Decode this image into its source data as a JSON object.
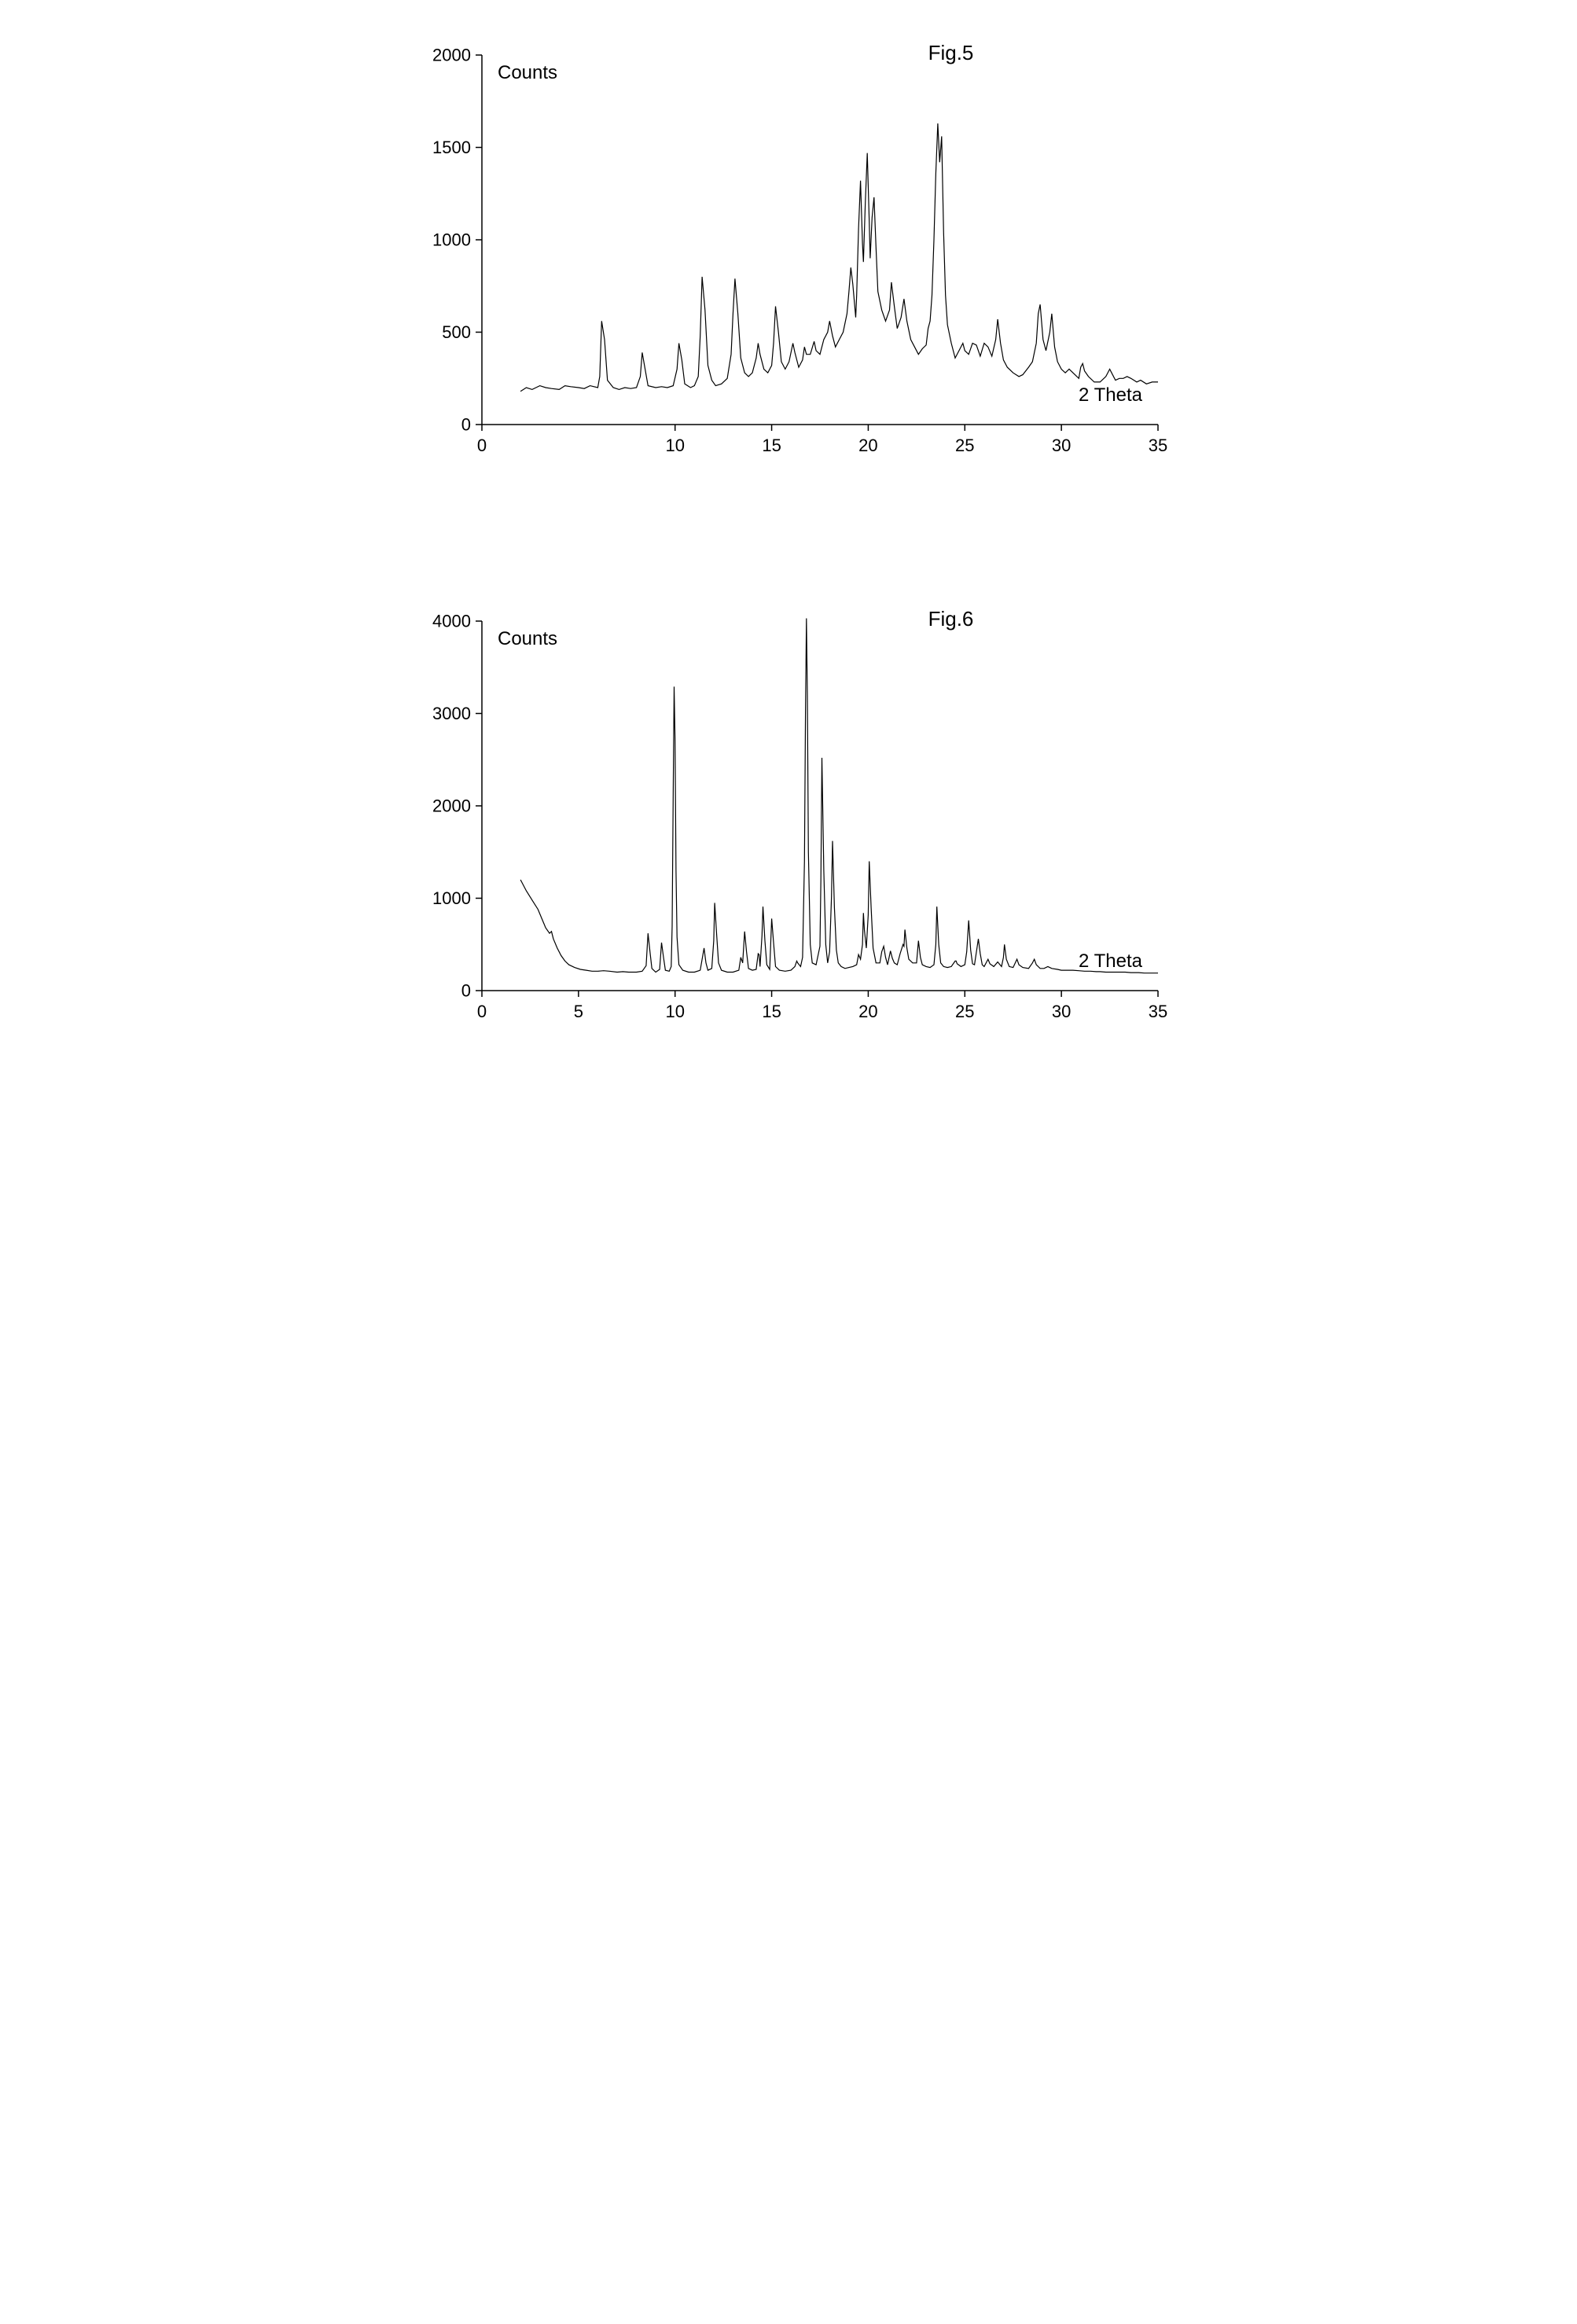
{
  "page": {
    "background_color": "#ffffff"
  },
  "fig5": {
    "type": "line",
    "title": "Fig.5",
    "ylabel": "Counts",
    "xlabel_right": "2 Theta",
    "xlim": [
      0,
      35
    ],
    "ylim": [
      0,
      2000
    ],
    "x_ticks": [
      0,
      10,
      15,
      20,
      25,
      30,
      35
    ],
    "y_ticks": [
      0,
      500,
      1000,
      1500,
      2000
    ],
    "title_fontsize": 26,
    "label_fontsize": 24,
    "tick_fontsize": 22,
    "line_color": "#000000",
    "line_width": 1.2,
    "axis_color": "#000000",
    "background_color": "#ffffff",
    "data": [
      [
        2.0,
        180
      ],
      [
        2.3,
        200
      ],
      [
        2.6,
        190
      ],
      [
        3.0,
        210
      ],
      [
        3.3,
        200
      ],
      [
        3.6,
        195
      ],
      [
        4.0,
        190
      ],
      [
        4.3,
        210
      ],
      [
        4.6,
        205
      ],
      [
        5.0,
        200
      ],
      [
        5.3,
        195
      ],
      [
        5.6,
        210
      ],
      [
        6.0,
        200
      ],
      [
        6.1,
        260
      ],
      [
        6.2,
        560
      ],
      [
        6.35,
        460
      ],
      [
        6.5,
        240
      ],
      [
        6.8,
        200
      ],
      [
        7.1,
        190
      ],
      [
        7.4,
        200
      ],
      [
        7.7,
        195
      ],
      [
        8.0,
        200
      ],
      [
        8.2,
        260
      ],
      [
        8.3,
        390
      ],
      [
        8.45,
        300
      ],
      [
        8.6,
        210
      ],
      [
        9.0,
        200
      ],
      [
        9.3,
        205
      ],
      [
        9.6,
        200
      ],
      [
        9.9,
        210
      ],
      [
        10.1,
        300
      ],
      [
        10.2,
        440
      ],
      [
        10.35,
        350
      ],
      [
        10.5,
        220
      ],
      [
        10.8,
        200
      ],
      [
        11.0,
        210
      ],
      [
        11.2,
        260
      ],
      [
        11.3,
        480
      ],
      [
        11.4,
        800
      ],
      [
        11.55,
        620
      ],
      [
        11.7,
        320
      ],
      [
        11.9,
        240
      ],
      [
        12.1,
        210
      ],
      [
        12.4,
        220
      ],
      [
        12.7,
        250
      ],
      [
        12.9,
        380
      ],
      [
        13.0,
        600
      ],
      [
        13.1,
        790
      ],
      [
        13.25,
        600
      ],
      [
        13.4,
        360
      ],
      [
        13.6,
        280
      ],
      [
        13.8,
        260
      ],
      [
        14.0,
        280
      ],
      [
        14.2,
        360
      ],
      [
        14.3,
        440
      ],
      [
        14.4,
        380
      ],
      [
        14.6,
        300
      ],
      [
        14.8,
        280
      ],
      [
        15.0,
        320
      ],
      [
        15.1,
        440
      ],
      [
        15.2,
        640
      ],
      [
        15.35,
        500
      ],
      [
        15.5,
        340
      ],
      [
        15.7,
        300
      ],
      [
        15.9,
        340
      ],
      [
        16.1,
        440
      ],
      [
        16.2,
        390
      ],
      [
        16.4,
        310
      ],
      [
        16.6,
        350
      ],
      [
        16.7,
        420
      ],
      [
        16.8,
        380
      ],
      [
        17.0,
        380
      ],
      [
        17.2,
        450
      ],
      [
        17.3,
        400
      ],
      [
        17.5,
        380
      ],
      [
        17.7,
        460
      ],
      [
        17.9,
        500
      ],
      [
        18.0,
        560
      ],
      [
        18.15,
        480
      ],
      [
        18.3,
        420
      ],
      [
        18.5,
        460
      ],
      [
        18.7,
        500
      ],
      [
        18.9,
        600
      ],
      [
        19.0,
        720
      ],
      [
        19.1,
        850
      ],
      [
        19.2,
        760
      ],
      [
        19.35,
        580
      ],
      [
        19.4,
        700
      ],
      [
        19.5,
        1060
      ],
      [
        19.6,
        1320
      ],
      [
        19.7,
        980
      ],
      [
        19.75,
        880
      ],
      [
        19.85,
        1200
      ],
      [
        19.95,
        1470
      ],
      [
        20.05,
        1100
      ],
      [
        20.1,
        900
      ],
      [
        20.2,
        1120
      ],
      [
        20.3,
        1230
      ],
      [
        20.4,
        960
      ],
      [
        20.5,
        720
      ],
      [
        20.7,
        620
      ],
      [
        20.9,
        560
      ],
      [
        21.1,
        620
      ],
      [
        21.2,
        770
      ],
      [
        21.35,
        640
      ],
      [
        21.5,
        520
      ],
      [
        21.7,
        580
      ],
      [
        21.85,
        680
      ],
      [
        22.0,
        560
      ],
      [
        22.2,
        460
      ],
      [
        22.4,
        420
      ],
      [
        22.6,
        380
      ],
      [
        22.8,
        410
      ],
      [
        23.0,
        430
      ],
      [
        23.1,
        520
      ],
      [
        23.2,
        560
      ],
      [
        23.3,
        700
      ],
      [
        23.4,
        1000
      ],
      [
        23.5,
        1360
      ],
      [
        23.6,
        1630
      ],
      [
        23.7,
        1420
      ],
      [
        23.8,
        1560
      ],
      [
        23.9,
        1040
      ],
      [
        24.0,
        700
      ],
      [
        24.1,
        540
      ],
      [
        24.3,
        440
      ],
      [
        24.5,
        360
      ],
      [
        24.7,
        400
      ],
      [
        24.9,
        440
      ],
      [
        25.0,
        400
      ],
      [
        25.2,
        380
      ],
      [
        25.4,
        440
      ],
      [
        25.6,
        430
      ],
      [
        25.8,
        370
      ],
      [
        26.0,
        440
      ],
      [
        26.2,
        420
      ],
      [
        26.4,
        370
      ],
      [
        26.6,
        460
      ],
      [
        26.7,
        570
      ],
      [
        26.85,
        440
      ],
      [
        27.0,
        350
      ],
      [
        27.2,
        310
      ],
      [
        27.5,
        280
      ],
      [
        27.8,
        260
      ],
      [
        28.0,
        270
      ],
      [
        28.3,
        310
      ],
      [
        28.5,
        340
      ],
      [
        28.7,
        440
      ],
      [
        28.8,
        600
      ],
      [
        28.9,
        650
      ],
      [
        29.05,
        460
      ],
      [
        29.2,
        400
      ],
      [
        29.4,
        500
      ],
      [
        29.5,
        600
      ],
      [
        29.65,
        420
      ],
      [
        29.8,
        340
      ],
      [
        30.0,
        300
      ],
      [
        30.2,
        280
      ],
      [
        30.4,
        300
      ],
      [
        30.6,
        280
      ],
      [
        30.9,
        250
      ],
      [
        31.0,
        310
      ],
      [
        31.1,
        330
      ],
      [
        31.2,
        290
      ],
      [
        31.4,
        260
      ],
      [
        31.7,
        230
      ],
      [
        32.0,
        230
      ],
      [
        32.3,
        260
      ],
      [
        32.5,
        300
      ],
      [
        32.6,
        280
      ],
      [
        32.8,
        240
      ],
      [
        33.0,
        250
      ],
      [
        33.2,
        250
      ],
      [
        33.4,
        260
      ],
      [
        33.6,
        250
      ],
      [
        33.9,
        230
      ],
      [
        34.1,
        240
      ],
      [
        34.4,
        220
      ],
      [
        34.7,
        230
      ],
      [
        35.0,
        230
      ]
    ]
  },
  "fig6": {
    "type": "line",
    "title": "Fig.6",
    "ylabel": "Counts",
    "xlabel_right": "2 Theta",
    "xlim": [
      0,
      35
    ],
    "ylim": [
      0,
      4000
    ],
    "x_ticks": [
      0,
      5,
      10,
      15,
      20,
      25,
      30,
      35
    ],
    "y_ticks": [
      0,
      1000,
      2000,
      3000,
      4000
    ],
    "title_fontsize": 26,
    "label_fontsize": 24,
    "tick_fontsize": 22,
    "line_color": "#000000",
    "line_width": 1.2,
    "axis_color": "#000000",
    "background_color": "#ffffff",
    "data": [
      [
        2.0,
        1200
      ],
      [
        2.3,
        1080
      ],
      [
        2.6,
        980
      ],
      [
        2.9,
        880
      ],
      [
        3.1,
        780
      ],
      [
        3.3,
        680
      ],
      [
        3.5,
        620
      ],
      [
        3.6,
        640
      ],
      [
        3.7,
        560
      ],
      [
        3.9,
        460
      ],
      [
        4.1,
        380
      ],
      [
        4.3,
        320
      ],
      [
        4.5,
        280
      ],
      [
        4.8,
        250
      ],
      [
        5.1,
        230
      ],
      [
        5.4,
        220
      ],
      [
        5.7,
        210
      ],
      [
        6.0,
        210
      ],
      [
        6.3,
        215
      ],
      [
        6.6,
        210
      ],
      [
        7.0,
        200
      ],
      [
        7.3,
        205
      ],
      [
        7.6,
        200
      ],
      [
        8.0,
        200
      ],
      [
        8.3,
        210
      ],
      [
        8.5,
        270
      ],
      [
        8.6,
        620
      ],
      [
        8.7,
        420
      ],
      [
        8.8,
        240
      ],
      [
        9.0,
        200
      ],
      [
        9.2,
        230
      ],
      [
        9.3,
        520
      ],
      [
        9.4,
        360
      ],
      [
        9.5,
        220
      ],
      [
        9.7,
        210
      ],
      [
        9.8,
        260
      ],
      [
        9.85,
        700
      ],
      [
        9.9,
        2100
      ],
      [
        9.95,
        3290
      ],
      [
        10.0,
        2700
      ],
      [
        10.05,
        1300
      ],
      [
        10.1,
        580
      ],
      [
        10.2,
        280
      ],
      [
        10.4,
        220
      ],
      [
        10.7,
        200
      ],
      [
        11.0,
        200
      ],
      [
        11.3,
        220
      ],
      [
        11.5,
        460
      ],
      [
        11.6,
        300
      ],
      [
        11.7,
        220
      ],
      [
        11.9,
        240
      ],
      [
        12.0,
        540
      ],
      [
        12.05,
        950
      ],
      [
        12.15,
        620
      ],
      [
        12.25,
        300
      ],
      [
        12.4,
        220
      ],
      [
        12.7,
        200
      ],
      [
        13.0,
        200
      ],
      [
        13.3,
        220
      ],
      [
        13.4,
        360
      ],
      [
        13.5,
        300
      ],
      [
        13.6,
        640
      ],
      [
        13.7,
        420
      ],
      [
        13.8,
        240
      ],
      [
        14.0,
        220
      ],
      [
        14.2,
        230
      ],
      [
        14.3,
        400
      ],
      [
        14.35,
        390
      ],
      [
        14.4,
        260
      ],
      [
        14.5,
        600
      ],
      [
        14.55,
        910
      ],
      [
        14.65,
        540
      ],
      [
        14.75,
        280
      ],
      [
        14.9,
        230
      ],
      [
        15.0,
        780
      ],
      [
        15.1,
        520
      ],
      [
        15.2,
        260
      ],
      [
        15.4,
        220
      ],
      [
        15.7,
        210
      ],
      [
        16.0,
        220
      ],
      [
        16.2,
        260
      ],
      [
        16.3,
        320
      ],
      [
        16.35,
        300
      ],
      [
        16.5,
        260
      ],
      [
        16.6,
        360
      ],
      [
        16.7,
        1400
      ],
      [
        16.75,
        3000
      ],
      [
        16.8,
        4030
      ],
      [
        16.85,
        3200
      ],
      [
        16.9,
        1500
      ],
      [
        17.0,
        500
      ],
      [
        17.1,
        300
      ],
      [
        17.3,
        280
      ],
      [
        17.5,
        480
      ],
      [
        17.55,
        1200
      ],
      [
        17.6,
        2520
      ],
      [
        17.7,
        1300
      ],
      [
        17.8,
        500
      ],
      [
        17.9,
        300
      ],
      [
        18.0,
        420
      ],
      [
        18.1,
        1020
      ],
      [
        18.15,
        1620
      ],
      [
        18.25,
        900
      ],
      [
        18.35,
        440
      ],
      [
        18.45,
        300
      ],
      [
        18.6,
        260
      ],
      [
        18.8,
        240
      ],
      [
        19.0,
        250
      ],
      [
        19.2,
        260
      ],
      [
        19.4,
        280
      ],
      [
        19.5,
        390
      ],
      [
        19.6,
        340
      ],
      [
        19.7,
        500
      ],
      [
        19.75,
        840
      ],
      [
        19.8,
        660
      ],
      [
        19.9,
        460
      ],
      [
        20.0,
        820
      ],
      [
        20.05,
        1400
      ],
      [
        20.15,
        900
      ],
      [
        20.25,
        460
      ],
      [
        20.4,
        300
      ],
      [
        20.6,
        300
      ],
      [
        20.7,
        420
      ],
      [
        20.8,
        480
      ],
      [
        20.9,
        360
      ],
      [
        21.0,
        280
      ],
      [
        21.15,
        430
      ],
      [
        21.25,
        350
      ],
      [
        21.35,
        300
      ],
      [
        21.5,
        280
      ],
      [
        21.65,
        400
      ],
      [
        21.8,
        500
      ],
      [
        21.85,
        480
      ],
      [
        21.9,
        660
      ],
      [
        22.0,
        460
      ],
      [
        22.1,
        340
      ],
      [
        22.3,
        300
      ],
      [
        22.5,
        300
      ],
      [
        22.6,
        540
      ],
      [
        22.7,
        360
      ],
      [
        22.8,
        280
      ],
      [
        23.0,
        260
      ],
      [
        23.2,
        250
      ],
      [
        23.4,
        280
      ],
      [
        23.5,
        500
      ],
      [
        23.55,
        910
      ],
      [
        23.65,
        500
      ],
      [
        23.75,
        300
      ],
      [
        23.9,
        260
      ],
      [
        24.1,
        250
      ],
      [
        24.3,
        260
      ],
      [
        24.5,
        320
      ],
      [
        24.55,
        320
      ],
      [
        24.6,
        290
      ],
      [
        24.8,
        260
      ],
      [
        25.0,
        280
      ],
      [
        25.1,
        420
      ],
      [
        25.2,
        760
      ],
      [
        25.3,
        440
      ],
      [
        25.4,
        290
      ],
      [
        25.5,
        280
      ],
      [
        25.7,
        560
      ],
      [
        25.8,
        400
      ],
      [
        25.9,
        280
      ],
      [
        26.0,
        260
      ],
      [
        26.2,
        340
      ],
      [
        26.3,
        290
      ],
      [
        26.5,
        260
      ],
      [
        26.7,
        310
      ],
      [
        26.9,
        260
      ],
      [
        27.0,
        360
      ],
      [
        27.05,
        500
      ],
      [
        27.15,
        340
      ],
      [
        27.3,
        260
      ],
      [
        27.5,
        250
      ],
      [
        27.7,
        340
      ],
      [
        27.8,
        280
      ],
      [
        28.0,
        250
      ],
      [
        28.3,
        240
      ],
      [
        28.5,
        300
      ],
      [
        28.6,
        340
      ],
      [
        28.7,
        280
      ],
      [
        28.9,
        240
      ],
      [
        29.1,
        240
      ],
      [
        29.3,
        260
      ],
      [
        29.5,
        240
      ],
      [
        29.8,
        230
      ],
      [
        30.0,
        220
      ],
      [
        30.3,
        220
      ],
      [
        30.6,
        220
      ],
      [
        30.9,
        215
      ],
      [
        31.2,
        210
      ],
      [
        31.5,
        210
      ],
      [
        31.8,
        205
      ],
      [
        32.0,
        205
      ],
      [
        32.3,
        200
      ],
      [
        32.6,
        200
      ],
      [
        33.0,
        200
      ],
      [
        33.3,
        200
      ],
      [
        33.6,
        195
      ],
      [
        34.0,
        195
      ],
      [
        34.3,
        190
      ],
      [
        34.6,
        190
      ],
      [
        35.0,
        190
      ]
    ]
  }
}
